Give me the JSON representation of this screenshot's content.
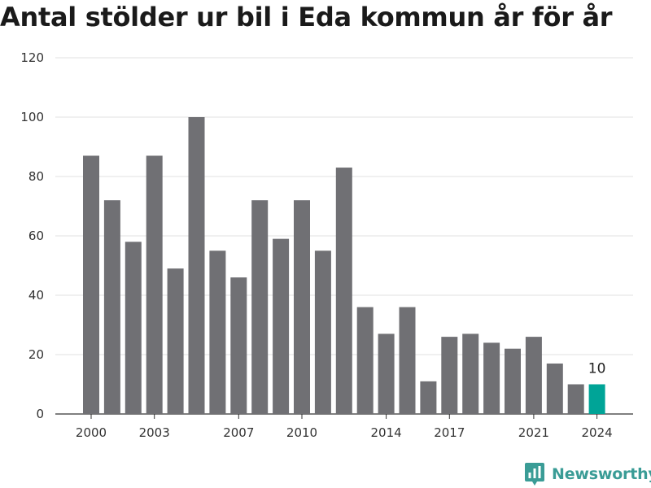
{
  "title": "Antal stölder ur bil i Eda kommun år för år",
  "brand": {
    "name": "Newsworthy",
    "logo_icon": "bar-chart-icon"
  },
  "colors": {
    "bar": "#707074",
    "highlight": "#00a497",
    "grid": "#e0e0e0",
    "axis": "#333333"
  },
  "chart_data": {
    "type": "bar",
    "title": "Antal stölder ur bil i Eda kommun år för år",
    "xlabel": "",
    "ylabel": "",
    "ylim": [
      0,
      120
    ],
    "yticks": [
      0,
      20,
      40,
      60,
      80,
      100,
      120
    ],
    "xticks": [
      2000,
      2003,
      2007,
      2010,
      2014,
      2017,
      2021,
      2024
    ],
    "x": [
      2000,
      2001,
      2002,
      2003,
      2004,
      2005,
      2006,
      2007,
      2008,
      2009,
      2010,
      2011,
      2012,
      2013,
      2014,
      2015,
      2016,
      2017,
      2018,
      2019,
      2020,
      2021,
      2022,
      2023,
      2024
    ],
    "values": [
      87,
      72,
      58,
      87,
      49,
      100,
      55,
      46,
      72,
      59,
      72,
      55,
      83,
      36,
      27,
      36,
      11,
      26,
      27,
      24,
      22,
      26,
      17,
      10,
      10
    ],
    "highlight_year": 2024,
    "highlight_label": "10",
    "grid": true
  }
}
